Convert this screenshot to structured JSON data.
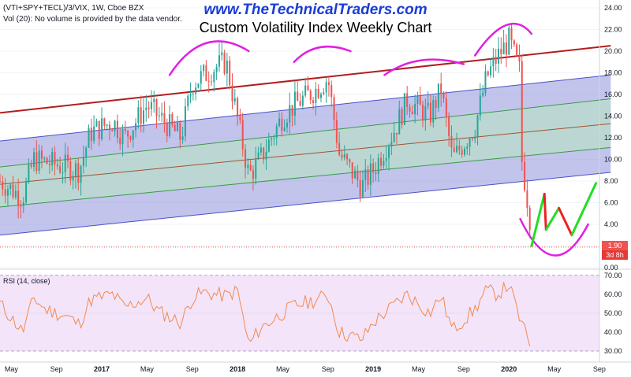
{
  "header": {
    "symbol": "(VTI+SPY+TECL)/3/VIX, 1W, Cboe BZX",
    "volume_note": "Vol (20): No volume is provided by the data vendor.",
    "website": "www.TheTechnicalTraders.com",
    "title": "Custom Volatility Index Weekly Chart"
  },
  "price_badge": {
    "last": "1.90",
    "countdown": "3d 8h"
  },
  "rsi_label": "RSI (14, close)",
  "colors": {
    "up": "#26a69a",
    "down": "#ef5350",
    "channel_top": "#b21d1d",
    "blue_band": "#8f94dc",
    "green_band": "#b8e7bf",
    "mid": "#a0522d",
    "arc": "#e020e0",
    "rsi_fill": "#f3e4fa",
    "rsi_line": "#f28a4c",
    "proj_up": "#22dd22",
    "proj_down": "#ee2222",
    "badge": "#ef5350"
  },
  "chart_data": [
    {
      "type": "candlestick",
      "title": "Custom Volatility Index Weekly Chart",
      "series": [],
      "ylim": [
        0,
        24
      ],
      "yticks": [
        "0.00",
        "2.00",
        "4.00",
        "6.00",
        "8.00",
        "10.00",
        "12.00",
        "14.00",
        "16.00",
        "18.00",
        "20.00",
        "22.00",
        "24.00"
      ],
      "xticks": [
        "May",
        "Sep",
        "2017",
        "May",
        "Sep",
        "2018",
        "May",
        "Sep",
        "2019",
        "May",
        "Sep",
        "2020",
        "May",
        "Sep"
      ],
      "last_value": 1.9,
      "close_trace": [
        {
          "date": "2016-04",
          "value": 8.0
        },
        {
          "date": "2016-06",
          "value": 6.5
        },
        {
          "date": "2016-07",
          "value": 10.0
        },
        {
          "date": "2016-09",
          "value": 9.5
        },
        {
          "date": "2016-11",
          "value": 9.0
        },
        {
          "date": "2016-12",
          "value": 12.5
        },
        {
          "date": "2017-02",
          "value": 13.5
        },
        {
          "date": "2017-03",
          "value": 12.0
        },
        {
          "date": "2017-05",
          "value": 15.0
        },
        {
          "date": "2017-06",
          "value": 14.0
        },
        {
          "date": "2017-08",
          "value": 12.0
        },
        {
          "date": "2017-09",
          "value": 17.0
        },
        {
          "date": "2017-11",
          "value": 18.5
        },
        {
          "date": "2017-12",
          "value": 19.0
        },
        {
          "date": "2018-02",
          "value": 8.5
        },
        {
          "date": "2018-03",
          "value": 10.0
        },
        {
          "date": "2018-05",
          "value": 14.0
        },
        {
          "date": "2018-06",
          "value": 15.0
        },
        {
          "date": "2018-08",
          "value": 16.5
        },
        {
          "date": "2018-09",
          "value": 17.5
        },
        {
          "date": "2018-10",
          "value": 10.5
        },
        {
          "date": "2018-12",
          "value": 7.5
        },
        {
          "date": "2019-01",
          "value": 9.0
        },
        {
          "date": "2019-03",
          "value": 13.0
        },
        {
          "date": "2019-04",
          "value": 15.5
        },
        {
          "date": "2019-06",
          "value": 14.0
        },
        {
          "date": "2019-07",
          "value": 16.5
        },
        {
          "date": "2019-08",
          "value": 10.0
        },
        {
          "date": "2019-10",
          "value": 13.0
        },
        {
          "date": "2019-11",
          "value": 17.5
        },
        {
          "date": "2019-12",
          "value": 19.5
        },
        {
          "date": "2020-01",
          "value": 21.0
        },
        {
          "date": "2020-02",
          "value": 18.0
        },
        {
          "date": "2020-02",
          "value": 11.0
        },
        {
          "date": "2020-03",
          "value": 3.5
        },
        {
          "date": "2020-03",
          "value": 1.9
        }
      ],
      "channel": {
        "upper_line": [
          {
            "date": "2016-04",
            "value": 14.3
          },
          {
            "date": "2020-10",
            "value": 20.5
          }
        ],
        "blue_band_top": [
          {
            "date": "2016-04",
            "value": 11.7
          },
          {
            "date": "2020-10",
            "value": 17.8
          }
        ],
        "green_band_top": [
          {
            "date": "2016-04",
            "value": 9.3
          },
          {
            "date": "2020-10",
            "value": 15.6
          }
        ],
        "middle_line": [
          {
            "date": "2016-04",
            "value": 7.7
          },
          {
            "date": "2020-10",
            "value": 13.3
          }
        ],
        "green_band_bottom": [
          {
            "date": "2016-04",
            "value": 5.6
          },
          {
            "date": "2020-10",
            "value": 11.1
          }
        ],
        "blue_band_bottom": [
          {
            "date": "2016-04",
            "value": 3.0
          },
          {
            "date": "2020-10",
            "value": 8.8
          }
        ]
      },
      "projection": [
        {
          "date": "2020-03",
          "value": 2.0,
          "dir": "up"
        },
        {
          "date": "2020-04",
          "value": 6.8,
          "dir": "down"
        },
        {
          "date": "2020-04",
          "value": 3.5,
          "dir": "up"
        },
        {
          "date": "2020-05",
          "value": 5.5,
          "dir": "down"
        },
        {
          "date": "2020-06",
          "value": 3.0,
          "dir": "up"
        },
        {
          "date": "2020-08",
          "value": 7.8
        }
      ]
    },
    {
      "type": "line",
      "title": "RSI (14, close)",
      "ylim": [
        25,
        72
      ],
      "yticks": [
        "30.00",
        "40.00",
        "50.00",
        "60.00",
        "70.00"
      ],
      "band": [
        30,
        70
      ],
      "rsi": [
        {
          "date": "2016-04",
          "value": 55
        },
        {
          "date": "2016-06",
          "value": 40
        },
        {
          "date": "2016-07",
          "value": 58
        },
        {
          "date": "2016-08",
          "value": 52
        },
        {
          "date": "2016-10",
          "value": 48
        },
        {
          "date": "2016-11",
          "value": 44
        },
        {
          "date": "2016-12",
          "value": 57
        },
        {
          "date": "2017-02",
          "value": 60
        },
        {
          "date": "2017-03",
          "value": 53
        },
        {
          "date": "2017-05",
          "value": 58
        },
        {
          "date": "2017-06",
          "value": 51
        },
        {
          "date": "2017-08",
          "value": 45
        },
        {
          "date": "2017-09",
          "value": 58
        },
        {
          "date": "2017-10",
          "value": 61
        },
        {
          "date": "2017-12",
          "value": 59
        },
        {
          "date": "2018-01",
          "value": 62
        },
        {
          "date": "2018-02",
          "value": 33
        },
        {
          "date": "2018-03",
          "value": 42
        },
        {
          "date": "2018-05",
          "value": 50
        },
        {
          "date": "2018-06",
          "value": 54
        },
        {
          "date": "2018-08",
          "value": 57
        },
        {
          "date": "2018-09",
          "value": 60
        },
        {
          "date": "2018-10",
          "value": 40
        },
        {
          "date": "2018-12",
          "value": 36
        },
        {
          "date": "2019-01",
          "value": 45
        },
        {
          "date": "2019-03",
          "value": 55
        },
        {
          "date": "2019-04",
          "value": 60
        },
        {
          "date": "2019-06",
          "value": 50
        },
        {
          "date": "2019-07",
          "value": 59
        },
        {
          "date": "2019-08",
          "value": 41
        },
        {
          "date": "2019-10",
          "value": 52
        },
        {
          "date": "2019-11",
          "value": 62
        },
        {
          "date": "2019-12",
          "value": 60
        },
        {
          "date": "2020-01",
          "value": 65
        },
        {
          "date": "2020-02",
          "value": 46
        },
        {
          "date": "2020-03",
          "value": 32
        }
      ]
    }
  ]
}
